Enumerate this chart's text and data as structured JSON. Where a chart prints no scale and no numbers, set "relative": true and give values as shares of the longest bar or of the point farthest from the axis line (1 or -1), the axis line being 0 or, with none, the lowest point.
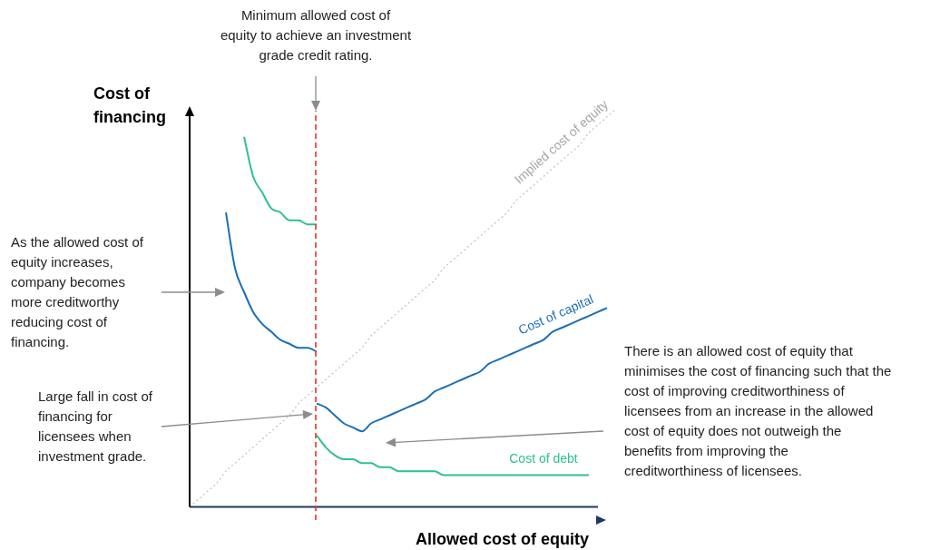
{
  "chart_data": {
    "type": "line",
    "relative": true,
    "xlabel": "Allowed cost of equity",
    "ylabel": "Cost of financing",
    "legend": false,
    "grid": false,
    "marker": "none",
    "categories": [
      null,
      null,
      null,
      null,
      null,
      null,
      null,
      null,
      null,
      null,
      null,
      null,
      null,
      null,
      null,
      null,
      null,
      null,
      null,
      null,
      null,
      null,
      null,
      null,
      null,
      null,
      null,
      null,
      null,
      null,
      null,
      null,
      null,
      null,
      null,
      null,
      null,
      null,
      null,
      null,
      null,
      null,
      null,
      null,
      null,
      null,
      null,
      null
    ],
    "series": [
      {
        "name": "Implied cost of equity",
        "color": "#bfbfbf",
        "line_style": "dotted",
        "values": [
          0,
          0.02,
          0.04,
          0.06,
          0.09,
          0.11,
          0.13,
          0.15,
          0.17,
          0.19,
          0.21,
          0.23,
          0.26,
          0.28,
          0.3,
          0.32,
          0.34,
          0.36,
          0.38,
          0.4,
          0.43,
          0.45,
          0.47,
          0.49,
          0.51,
          0.53,
          0.55,
          0.57,
          0.6,
          0.62,
          0.64,
          0.66,
          0.68,
          0.7,
          0.72,
          0.74,
          0.77,
          0.79,
          0.81,
          0.83,
          0.85,
          0.87,
          0.89,
          0.91,
          0.94,
          0.96,
          0.98,
          1
        ]
      },
      {
        "color": "#2ec28a",
        "values": [
          null,
          null,
          null,
          null,
          null,
          null,
          0.93,
          0.83,
          0.79,
          0.75,
          0.74,
          0.72,
          0.72,
          0.71,
          0.71,
          null,
          null,
          null,
          null,
          null,
          null,
          null,
          null,
          null,
          null,
          null,
          null,
          null,
          null,
          null,
          null,
          null,
          null,
          null,
          null,
          null,
          null,
          null,
          null,
          null,
          null,
          null,
          null,
          null,
          null,
          null,
          null,
          null
        ]
      },
      {
        "color": "#1a6fb5",
        "values": [
          null,
          null,
          null,
          null,
          0.74,
          0.6,
          0.54,
          0.49,
          0.46,
          0.44,
          0.42,
          0.41,
          0.4,
          0.4,
          0.39,
          null,
          null,
          null,
          null,
          null,
          null,
          null,
          null,
          null,
          null,
          null,
          null,
          null,
          null,
          null,
          null,
          null,
          null,
          null,
          null,
          null,
          null,
          null,
          null,
          null,
          null,
          null,
          null,
          null,
          null,
          null,
          null,
          null
        ]
      },
      {
        "name": "Cost of capital",
        "color": "#1a6fb5",
        "values": [
          null,
          null,
          null,
          null,
          null,
          null,
          null,
          null,
          null,
          null,
          null,
          null,
          null,
          null,
          0.26,
          0.25,
          0.23,
          0.21,
          0.2,
          0.19,
          0.21,
          0.22,
          0.23,
          0.24,
          0.25,
          0.26,
          0.27,
          0.29,
          0.3,
          0.31,
          0.32,
          0.33,
          0.34,
          0.36,
          0.37,
          0.38,
          0.39,
          0.4,
          0.41,
          0.42,
          0.44,
          0.45,
          0.46,
          0.47,
          0.48,
          0.49,
          0.5,
          null
        ]
      },
      {
        "name": "Cost of debt",
        "color": "#2ec28a",
        "values": [
          null,
          null,
          null,
          null,
          null,
          null,
          null,
          null,
          null,
          null,
          null,
          null,
          null,
          null,
          0.18,
          0.15,
          0.13,
          0.12,
          0.12,
          0.11,
          0.11,
          0.1,
          0.1,
          0.09,
          0.09,
          0.09,
          0.09,
          0.09,
          0.08,
          0.08,
          0.08,
          0.08,
          0.08,
          0.08,
          0.08,
          0.08,
          0.08,
          0.08,
          0.08,
          0.08,
          0.08,
          0.08,
          0.08,
          0.08,
          0.08,
          null,
          null,
          null
        ]
      }
    ],
    "annotations": [
      "Minimum allowed cost of\nequity to achieve an investment\ngrade credit rating.",
      "As the allowed cost of\nequity increases,\ncompany becomes\nmore creditworthy\nreducing cost of\nfinancing.",
      "Large fall in cost of\nfinancing for\nlicensees when\ninvestment grade.",
      "There is an allowed cost of equity that\nminimises the cost of financing such that the\ncost of improving creditworthiness of\nlicensees from an increase in the allowed\ncost of equity does not outweigh the\nbenefits from improving the\ncreditworthiness of licensees."
    ]
  }
}
